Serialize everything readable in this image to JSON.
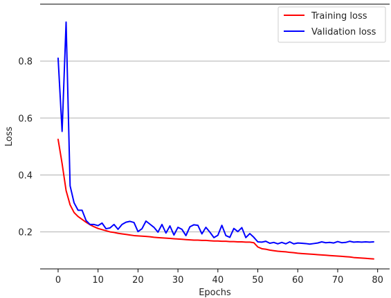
{
  "chart_data": {
    "type": "line",
    "xlabel": "Epochs",
    "ylabel": "Loss",
    "xlim": [
      -4.5,
      83
    ],
    "ylim": [
      0.07,
      1.0
    ],
    "xticks": [
      0,
      10,
      20,
      30,
      40,
      50,
      60,
      70,
      80
    ],
    "yticks": [
      0.2,
      0.4,
      0.6,
      0.8
    ],
    "ytick_labels": [
      "0.2",
      "0.4",
      "0.6",
      "0.8"
    ],
    "grid": "horizontal",
    "legend_position": "top-right",
    "series": [
      {
        "name": "Training loss",
        "color": "#ff0000",
        "x": [
          0,
          1,
          2,
          3,
          4,
          5,
          6,
          7,
          8,
          9,
          10,
          11,
          12,
          13,
          14,
          15,
          16,
          17,
          18,
          19,
          20,
          21,
          22,
          23,
          24,
          25,
          26,
          27,
          28,
          29,
          30,
          31,
          32,
          33,
          34,
          35,
          36,
          37,
          38,
          39,
          40,
          41,
          42,
          43,
          44,
          45,
          46,
          47,
          48,
          49,
          50,
          51,
          52,
          53,
          54,
          55,
          56,
          57,
          58,
          59,
          60,
          61,
          62,
          63,
          64,
          65,
          66,
          67,
          68,
          69,
          70,
          71,
          72,
          73,
          74,
          75,
          76,
          77,
          78,
          79
        ],
        "values": [
          0.525,
          0.44,
          0.345,
          0.295,
          0.268,
          0.254,
          0.244,
          0.234,
          0.225,
          0.218,
          0.212,
          0.208,
          0.204,
          0.2,
          0.198,
          0.195,
          0.193,
          0.191,
          0.189,
          0.187,
          0.186,
          0.185,
          0.184,
          0.183,
          0.181,
          0.18,
          0.179,
          0.178,
          0.177,
          0.176,
          0.175,
          0.174,
          0.173,
          0.172,
          0.171,
          0.171,
          0.17,
          0.17,
          0.169,
          0.168,
          0.168,
          0.167,
          0.167,
          0.166,
          0.166,
          0.165,
          0.165,
          0.164,
          0.164,
          0.162,
          0.147,
          0.141,
          0.139,
          0.136,
          0.134,
          0.132,
          0.131,
          0.13,
          0.128,
          0.127,
          0.125,
          0.124,
          0.123,
          0.122,
          0.121,
          0.12,
          0.119,
          0.118,
          0.117,
          0.116,
          0.115,
          0.114,
          0.113,
          0.112,
          0.11,
          0.109,
          0.108,
          0.107,
          0.106,
          0.105
        ]
      },
      {
        "name": "Validation loss",
        "color": "#0000ff",
        "x": [
          0,
          1,
          2,
          3,
          4,
          5,
          6,
          7,
          8,
          9,
          10,
          11,
          12,
          13,
          14,
          15,
          16,
          17,
          18,
          19,
          20,
          21,
          22,
          23,
          24,
          25,
          26,
          27,
          28,
          29,
          30,
          31,
          32,
          33,
          34,
          35,
          36,
          37,
          38,
          39,
          40,
          41,
          42,
          43,
          44,
          45,
          46,
          47,
          48,
          49,
          50,
          51,
          52,
          53,
          54,
          55,
          56,
          57,
          58,
          59,
          60,
          61,
          62,
          63,
          64,
          65,
          66,
          67,
          68,
          69,
          70,
          71,
          72,
          73,
          74,
          75,
          76,
          77,
          78,
          79
        ],
        "values": [
          0.81,
          0.553,
          0.937,
          0.362,
          0.302,
          0.276,
          0.276,
          0.24,
          0.226,
          0.226,
          0.222,
          0.231,
          0.211,
          0.214,
          0.226,
          0.209,
          0.226,
          0.234,
          0.237,
          0.233,
          0.201,
          0.211,
          0.238,
          0.227,
          0.216,
          0.199,
          0.226,
          0.196,
          0.221,
          0.189,
          0.216,
          0.209,
          0.187,
          0.218,
          0.225,
          0.223,
          0.193,
          0.216,
          0.199,
          0.18,
          0.188,
          0.223,
          0.187,
          0.181,
          0.212,
          0.201,
          0.215,
          0.18,
          0.194,
          0.181,
          0.165,
          0.164,
          0.167,
          0.16,
          0.163,
          0.158,
          0.163,
          0.158,
          0.165,
          0.158,
          0.161,
          0.16,
          0.159,
          0.157,
          0.159,
          0.161,
          0.165,
          0.162,
          0.163,
          0.161,
          0.166,
          0.162,
          0.163,
          0.167,
          0.164,
          0.165,
          0.164,
          0.165,
          0.164,
          0.165
        ]
      }
    ]
  }
}
